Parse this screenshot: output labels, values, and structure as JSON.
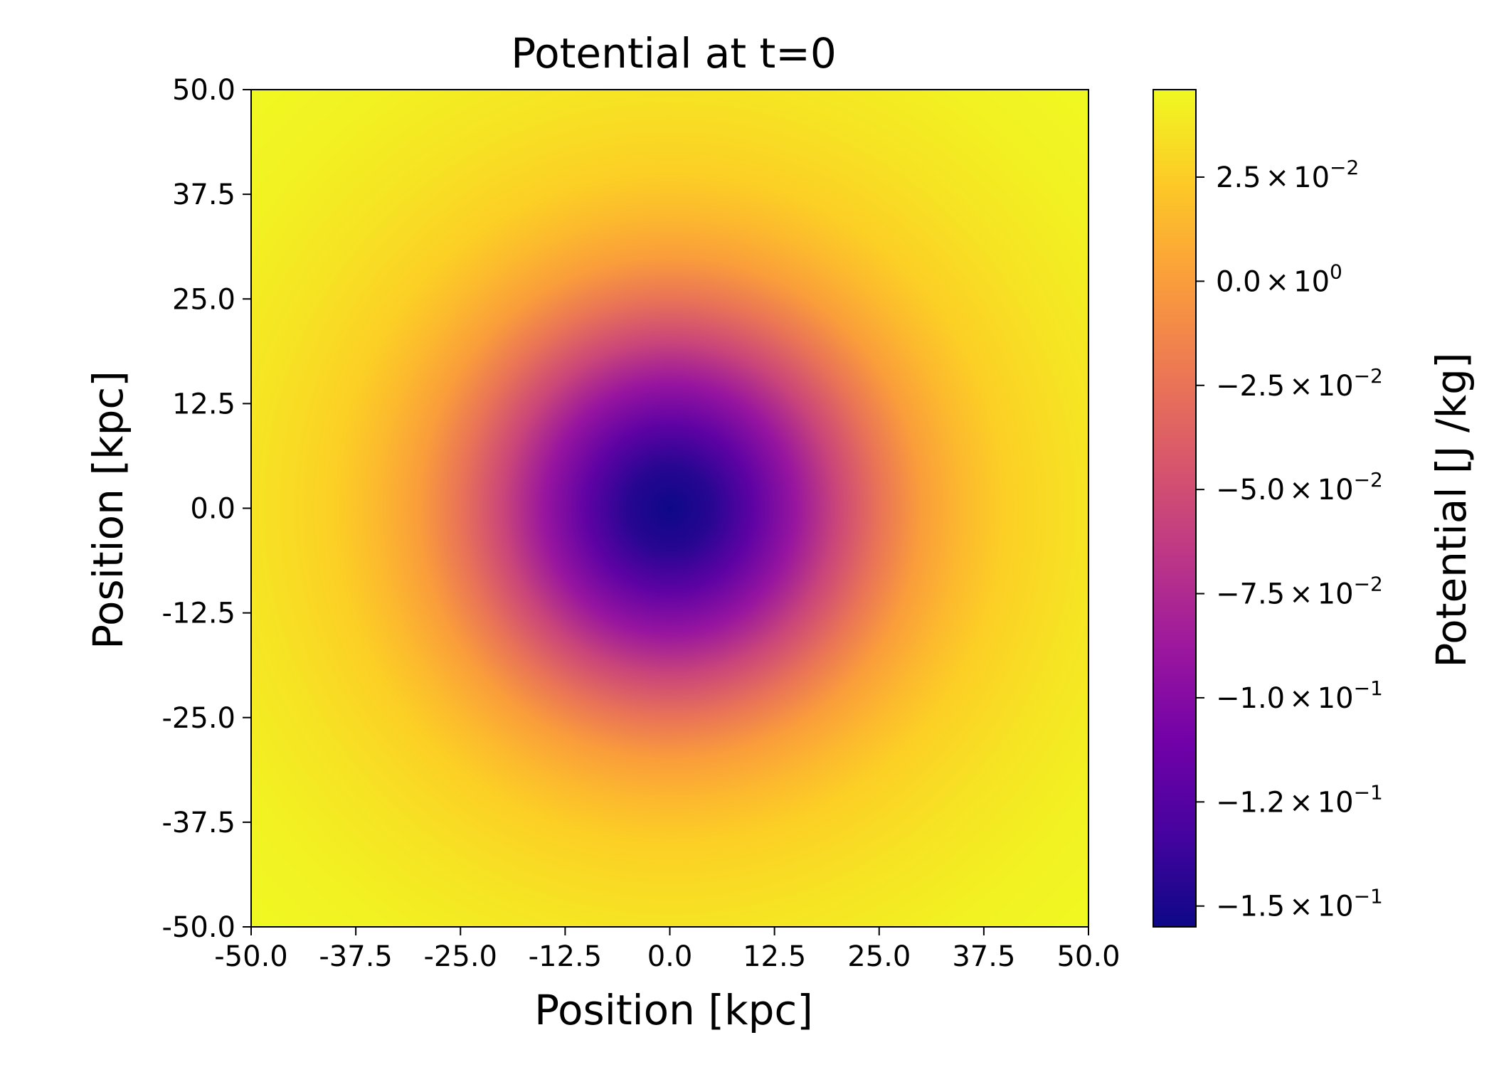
{
  "chart_data": {
    "type": "heatmap",
    "title": "Potential at t=0",
    "xlabel": "Position [kpc]",
    "ylabel": "Position [kpc]",
    "xlim": [
      -50.0,
      50.0
    ],
    "ylim": [
      -50.0,
      50.0
    ],
    "x_ticks": [
      "-50.0",
      "-37.5",
      "-25.0",
      "-12.5",
      "0.0",
      "12.5",
      "25.0",
      "37.5",
      "50.0"
    ],
    "y_ticks": [
      "-50.0",
      "-37.5",
      "-25.0",
      "-12.5",
      "0.0",
      "12.5",
      "25.0",
      "37.5",
      "50.0"
    ],
    "field": {
      "description": "radially symmetric potential well centered at (0, 0)",
      "center": [
        0.0,
        0.0
      ],
      "min_value": -0.155,
      "max_value": 0.046,
      "value_at_r_kpc": [
        [
          0,
          -0.155
        ],
        [
          5,
          -0.145
        ],
        [
          10,
          -0.12
        ],
        [
          15,
          -0.09
        ],
        [
          20,
          -0.055
        ],
        [
          25,
          -0.025
        ],
        [
          30,
          0.0
        ],
        [
          35,
          0.015
        ],
        [
          40,
          0.026
        ],
        [
          50,
          0.036
        ],
        [
          60,
          0.042
        ],
        [
          71,
          0.046
        ]
      ]
    },
    "colorbar": {
      "label": "Potential [J /kg]",
      "colormap": "plasma",
      "colormap_stops": [
        "#0d0887",
        "#46039f",
        "#7201a8",
        "#9c179e",
        "#bd3786",
        "#d8576b",
        "#ed7953",
        "#fb9f3a",
        "#fdca26",
        "#f0f921"
      ],
      "range": [
        -0.155,
        0.046
      ],
      "ticks": [
        {
          "value": 0.025,
          "mantissa": "2.5",
          "exponent": "−2"
        },
        {
          "value": 0.0,
          "mantissa": "0.0",
          "exponent": "0"
        },
        {
          "value": -0.025,
          "mantissa": "−2.5",
          "exponent": "−2"
        },
        {
          "value": -0.05,
          "mantissa": "−5.0",
          "exponent": "−2"
        },
        {
          "value": -0.075,
          "mantissa": "−7.5",
          "exponent": "−2"
        },
        {
          "value": -0.1,
          "mantissa": "−1.0",
          "exponent": "−1"
        },
        {
          "value": -0.125,
          "mantissa": "−1.2",
          "exponent": "−1"
        },
        {
          "value": -0.15,
          "mantissa": "−1.5",
          "exponent": "−1"
        }
      ],
      "times_sign": "×",
      "base": "10"
    }
  }
}
